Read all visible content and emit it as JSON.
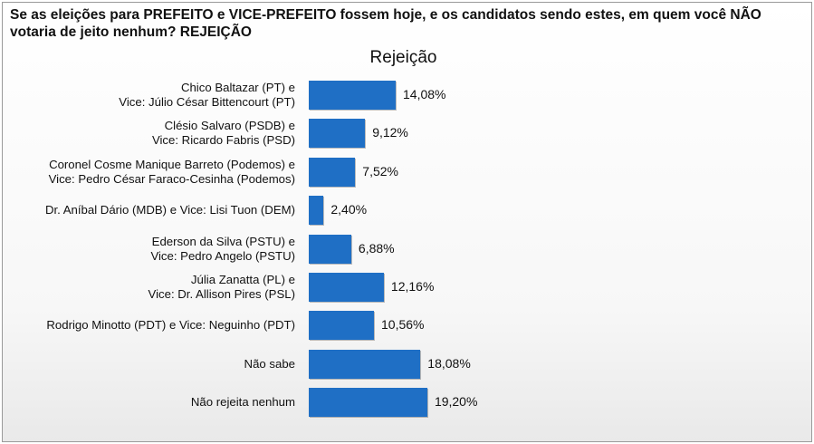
{
  "question": "Se as eleições para PREFEITO e VICE-PREFEITO fossem hoje, e os candidatos sendo estes, em quem você NÃO votaria de jeito nenhum? REJEIÇÃO",
  "chart_data": {
    "type": "bar",
    "orientation": "horizontal",
    "title": "Rejeição",
    "categories": [
      [
        "Chico Baltazar (PT) e",
        "Vice: Júlio César Bittencourt (PT)"
      ],
      [
        "Clésio Salvaro (PSDB) e",
        "Vice: Ricardo Fabris (PSD)"
      ],
      [
        "Coronel Cosme Manique Barreto (Podemos) e",
        "Vice: Pedro César Faraco-Cesinha (Podemos)"
      ],
      [
        "Dr. Aníbal Dário (MDB) e Vice: Lisi Tuon (DEM)"
      ],
      [
        "Ederson da Silva (PSTU) e",
        "Vice: Pedro Angelo (PSTU)"
      ],
      [
        "Júlia Zanatta (PL) e",
        "Vice: Dr. Allison Pires (PSL)"
      ],
      [
        "Rodrigo Minotto (PDT) e Vice: Neguinho (PDT)"
      ],
      [
        "Não sabe"
      ],
      [
        "Não rejeita nenhum"
      ]
    ],
    "values": [
      14.08,
      9.12,
      7.52,
      2.4,
      6.88,
      12.16,
      10.56,
      18.08,
      19.2
    ],
    "value_labels": [
      "14,08%",
      "9,12%",
      "7,52%",
      "2,40%",
      "6,88%",
      "12,16%",
      "10,56%",
      "18,08%",
      "19,20%"
    ],
    "bar_color": "#1f6fc5",
    "grid": false,
    "legend": "none"
  }
}
